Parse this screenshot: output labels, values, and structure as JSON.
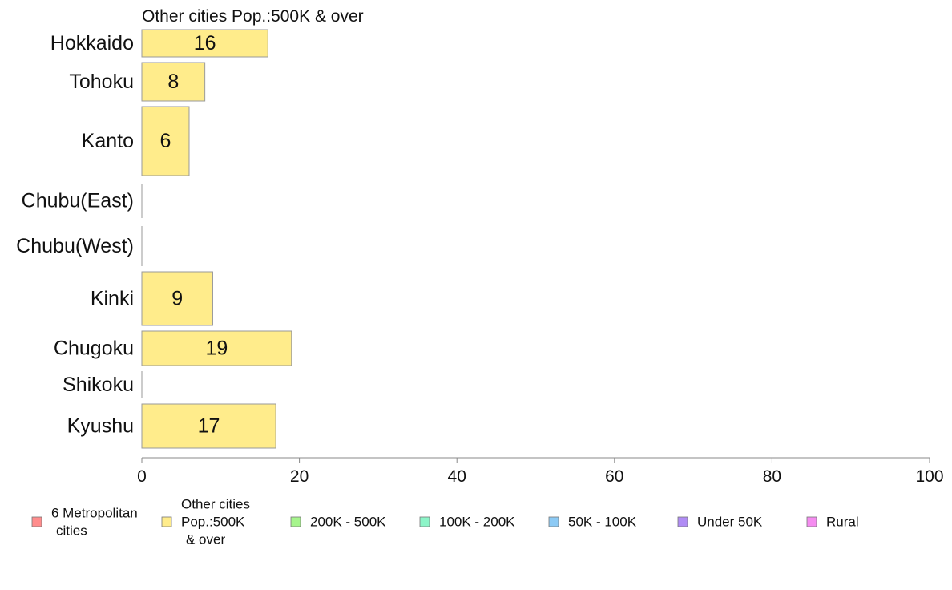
{
  "chart_data": {
    "type": "bar",
    "orientation": "horizontal",
    "title": "Other cities Pop.:500K & over",
    "categories": [
      "Hokkaido",
      "Tohoku",
      "Kanto",
      "Chubu(East)",
      "Chubu(West)",
      "Kinki",
      "Chugoku",
      "Shikoku",
      "Kyushu"
    ],
    "series": [
      {
        "name": "Other cities Pop.:500K & over",
        "values": [
          16,
          8,
          6,
          0,
          0,
          9,
          19,
          0,
          17
        ],
        "color": "#ffec8b"
      }
    ],
    "value_labels": [
      "16",
      "8",
      "6",
      "",
      "",
      "9",
      "19",
      "",
      "17"
    ],
    "xlim": [
      0,
      100
    ],
    "xticks": [
      0,
      20,
      40,
      60,
      80,
      100
    ],
    "xtick_labels": [
      "0",
      "20",
      "40",
      "60",
      "80",
      "100"
    ],
    "grid": false,
    "legend_position": "bottom",
    "legend": [
      {
        "lines": [
          "6 Metropolitan",
          "cities"
        ],
        "color": "#ff8c8c"
      },
      {
        "lines": [
          "Other cities",
          "Pop.:500K",
          "& over"
        ],
        "color": "#ffec8b"
      },
      {
        "lines": [
          "200K - 500K"
        ],
        "color": "#a6f58c"
      },
      {
        "lines": [
          "100K - 200K"
        ],
        "color": "#8cf5c8"
      },
      {
        "lines": [
          "50K - 100K"
        ],
        "color": "#8ccaf5"
      },
      {
        "lines": [
          "Under 50K"
        ],
        "color": "#b08cf5"
      },
      {
        "lines": [
          "Rural"
        ],
        "color": "#f58cf0"
      }
    ]
  }
}
